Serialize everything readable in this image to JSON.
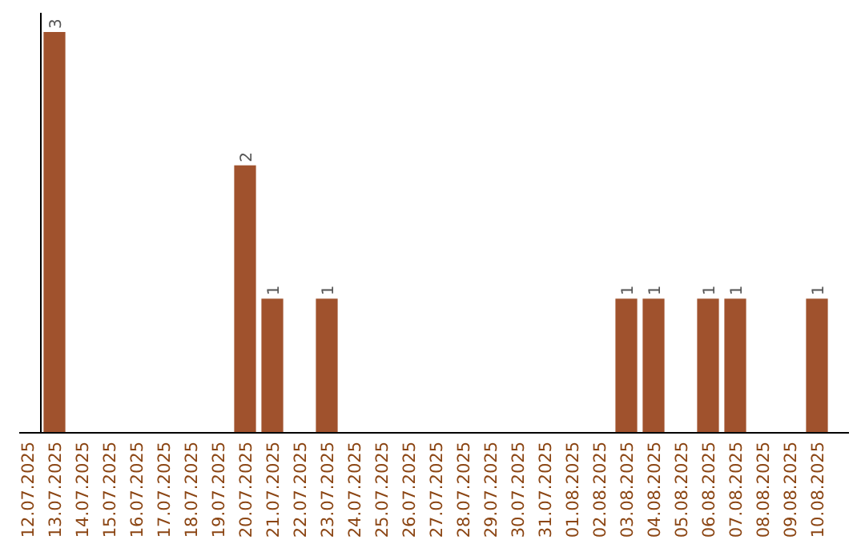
{
  "chart_data": {
    "type": "bar",
    "relative": false,
    "categories": [
      "12.07.2025",
      "13.07.2025",
      "14.07.2025",
      "15.07.2025",
      "16.07.2025",
      "17.07.2025",
      "18.07.2025",
      "19.07.2025",
      "20.07.2025",
      "21.07.2025",
      "22.07.2025",
      "23.07.2025",
      "24.07.2025",
      "25.07.2025",
      "26.07.2025",
      "27.07.2025",
      "28.07.2025",
      "29.07.2025",
      "30.07.2025",
      "31.07.2025",
      "01.08.2025",
      "02.08.2025",
      "03.08.2025",
      "04.08.2025",
      "05.08.2025",
      "06.08.2025",
      "07.08.2025",
      "08.08.2025",
      "09.08.2025",
      "10.08.2025"
    ],
    "values": [
      0,
      3,
      0,
      0,
      0,
      0,
      0,
      0,
      2,
      1,
      0,
      1,
      0,
      0,
      0,
      0,
      0,
      0,
      0,
      0,
      0,
      0,
      1,
      1,
      0,
      1,
      1,
      0,
      0,
      1
    ],
    "value_labels": [
      null,
      "3",
      null,
      null,
      null,
      null,
      null,
      null,
      "2",
      "1",
      null,
      "1",
      null,
      null,
      null,
      null,
      null,
      null,
      null,
      null,
      null,
      null,
      "1",
      "1",
      null,
      "1",
      "1",
      null,
      null,
      "1"
    ],
    "color": "#a0522d",
    "tick_labels": "x"
  }
}
